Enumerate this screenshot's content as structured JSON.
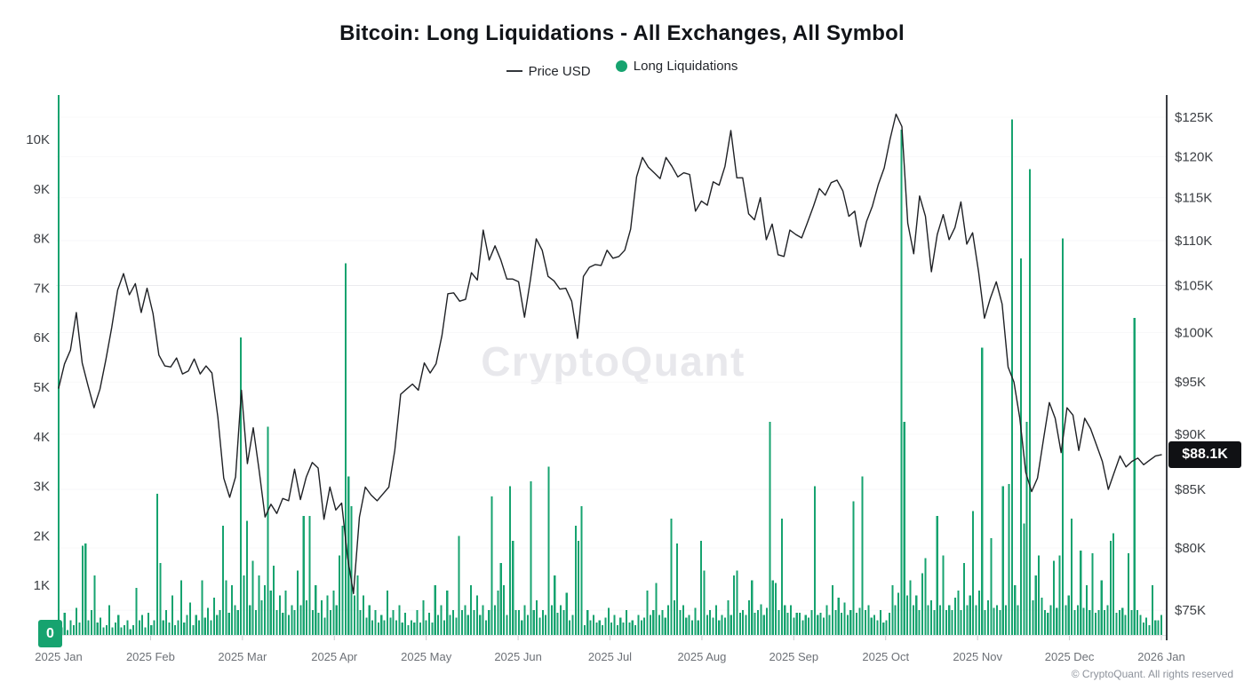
{
  "watermark": "CryptoQuant",
  "copyright": "© CryptoQuant. All rights reserved",
  "chart_data": {
    "type": "combo",
    "title": "Bitcoin: Long Liquidations - All Exchanges, All Symbol",
    "legend_position": "top-center",
    "colors": {
      "bars": "#16a36f",
      "price_line": "#1f2125",
      "price_badge_bg": "#101114",
      "zero_badge_bg": "#16a36f"
    },
    "x_axis": {
      "tick_labels": [
        "2025 Jan",
        "2025 Feb",
        "2025 Mar",
        "2025 Apr",
        "2025 May",
        "2025 Jun",
        "2025 Jul",
        "2025 Aug",
        "2025 Sep",
        "2025 Oct",
        "2025 Nov",
        "2025 Dec",
        "2026 Jan"
      ],
      "start": "2025-01-01",
      "end": "2026-01-05"
    },
    "left_axis": {
      "series": "Long Liquidations",
      "tick_labels": [
        "1K",
        "2K",
        "3K",
        "4K",
        "5K",
        "6K",
        "7K",
        "8K",
        "9K",
        "10K"
      ],
      "tick_values": [
        1,
        2,
        3,
        4,
        5,
        6,
        7,
        8,
        9,
        10
      ],
      "range_k": [
        0,
        10.92
      ],
      "current_badge": "0",
      "current_value": 0
    },
    "right_axis": {
      "series": "Price USD",
      "scale": "log",
      "tick_labels": [
        "$75K",
        "$80K",
        "$85K",
        "$90K",
        "$95K",
        "$100K",
        "$105K",
        "$110K",
        "$115K",
        "$120K",
        "$125K"
      ],
      "tick_values": [
        75,
        80,
        85,
        90,
        95,
        100,
        105,
        110,
        115,
        120,
        125
      ],
      "current_badge": "$88.1K",
      "current_value": 88.1
    },
    "series": [
      {
        "name": "Price USD",
        "type": "line",
        "axis": "right",
        "unit": "thousand USD",
        "points_per_step_days": 2,
        "values": [
          94.4,
          96.8,
          98.2,
          102.1,
          96.9,
          94.6,
          92.5,
          94.3,
          97.2,
          100.5,
          104.5,
          106.3,
          104.0,
          105.2,
          102.1,
          104.7,
          102.0,
          97.7,
          96.6,
          96.5,
          97.4,
          95.8,
          96.1,
          97.3,
          95.8,
          96.6,
          95.9,
          91.6,
          86.0,
          84.3,
          86.1,
          94.2,
          87.3,
          90.6,
          86.7,
          82.6,
          83.7,
          82.9,
          84.2,
          84.0,
          86.8,
          84.1,
          86.1,
          87.4,
          86.9,
          82.4,
          85.2,
          83.2,
          83.8,
          79.2,
          76.3,
          82.6,
          85.2,
          84.5,
          84.0,
          84.6,
          85.2,
          88.5,
          93.8,
          94.3,
          94.8,
          94.2,
          96.9,
          95.9,
          96.8,
          99.7,
          104.1,
          104.2,
          103.3,
          103.5,
          106.4,
          105.6,
          111.2,
          107.8,
          109.4,
          107.8,
          105.7,
          105.7,
          105.4,
          101.6,
          105.6,
          110.2,
          108.9,
          106.0,
          105.5,
          104.6,
          104.7,
          103.3,
          99.4,
          106.0,
          107.0,
          107.3,
          107.2,
          108.9,
          108.0,
          108.2,
          108.9,
          111.3,
          117.5,
          119.9,
          118.7,
          118.0,
          117.3,
          119.9,
          118.8,
          117.5,
          118.0,
          117.8,
          113.4,
          114.6,
          114.1,
          116.9,
          116.5,
          118.8,
          123.3,
          117.4,
          117.4,
          113.1,
          112.4,
          115.0,
          110.1,
          111.9,
          108.4,
          108.2,
          111.2,
          110.7,
          110.3,
          112.1,
          114.0,
          116.1,
          115.3,
          116.8,
          117.1,
          115.8,
          112.8,
          113.4,
          109.3,
          112.2,
          114.0,
          116.6,
          118.6,
          122.2,
          125.4,
          123.8,
          112.0,
          108.5,
          115.2,
          112.8,
          106.5,
          110.7,
          113.0,
          110.1,
          111.5,
          114.5,
          109.6,
          110.9,
          106.5,
          101.5,
          103.6,
          105.4,
          103.0,
          96.5,
          95.0,
          91.5,
          86.5,
          84.8,
          86.0,
          89.5,
          93.0,
          91.5,
          88.3,
          92.5,
          91.8,
          88.5,
          91.5,
          90.5,
          89.0,
          87.5,
          85.0,
          86.5,
          88.0,
          87.0,
          87.5,
          87.8,
          87.2,
          87.6,
          88.0,
          88.1
        ]
      },
      {
        "name": "Long Liquidations",
        "type": "bar",
        "axis": "left",
        "unit": "K",
        "points_per_step_days": 1,
        "values": [
          10.9,
          0.15,
          0.45,
          0.1,
          0.3,
          0.2,
          0.55,
          0.25,
          1.8,
          1.85,
          0.3,
          0.5,
          1.2,
          0.25,
          0.35,
          0.15,
          0.2,
          0.6,
          0.15,
          0.25,
          0.4,
          0.15,
          0.2,
          0.3,
          0.12,
          0.2,
          0.95,
          0.3,
          0.4,
          0.15,
          0.45,
          0.2,
          0.3,
          2.85,
          1.45,
          0.3,
          0.5,
          0.25,
          0.8,
          0.2,
          0.3,
          1.1,
          0.25,
          0.4,
          0.65,
          0.2,
          0.4,
          0.3,
          1.1,
          0.35,
          0.55,
          0.3,
          0.75,
          0.4,
          0.5,
          2.2,
          1.1,
          0.45,
          1.0,
          0.6,
          0.5,
          6.0,
          1.2,
          2.3,
          0.6,
          1.5,
          0.5,
          1.2,
          0.7,
          1.0,
          4.2,
          0.9,
          1.4,
          0.5,
          0.8,
          0.45,
          0.9,
          0.4,
          0.6,
          0.5,
          1.3,
          0.6,
          2.4,
          0.7,
          2.4,
          0.5,
          1.0,
          0.45,
          0.7,
          0.35,
          0.8,
          0.5,
          0.9,
          0.6,
          1.6,
          2.2,
          7.5,
          3.2,
          2.6,
          0.8,
          1.2,
          0.5,
          0.8,
          0.35,
          0.6,
          0.3,
          0.5,
          0.25,
          0.4,
          0.3,
          0.9,
          0.35,
          0.5,
          0.3,
          0.6,
          0.25,
          0.45,
          0.2,
          0.3,
          0.25,
          0.5,
          0.25,
          0.7,
          0.3,
          0.45,
          0.25,
          1.0,
          0.4,
          0.6,
          0.3,
          0.9,
          0.4,
          0.5,
          0.35,
          2.0,
          0.5,
          0.6,
          0.4,
          1.0,
          0.5,
          0.8,
          0.4,
          0.6,
          0.3,
          0.5,
          2.8,
          0.6,
          0.9,
          1.45,
          1.0,
          0.4,
          3.0,
          1.9,
          0.5,
          0.5,
          0.3,
          0.6,
          0.4,
          3.1,
          0.5,
          0.7,
          0.35,
          0.5,
          0.4,
          3.4,
          0.6,
          1.2,
          0.45,
          0.6,
          0.5,
          0.85,
          0.3,
          0.4,
          2.2,
          1.9,
          2.6,
          0.2,
          0.5,
          0.3,
          0.4,
          0.25,
          0.3,
          0.2,
          0.35,
          0.55,
          0.25,
          0.4,
          0.2,
          0.35,
          0.25,
          0.5,
          0.25,
          0.3,
          0.2,
          0.4,
          0.3,
          0.35,
          0.9,
          0.4,
          0.5,
          1.05,
          0.4,
          0.5,
          0.35,
          0.6,
          2.35,
          0.7,
          1.85,
          0.5,
          0.6,
          0.35,
          0.4,
          0.3,
          0.55,
          0.3,
          1.9,
          1.3,
          0.4,
          0.5,
          0.35,
          0.6,
          0.3,
          0.4,
          0.35,
          0.7,
          0.4,
          1.2,
          1.3,
          0.45,
          0.5,
          0.4,
          0.7,
          1.1,
          0.45,
          0.5,
          0.62,
          0.4,
          0.55,
          4.3,
          1.1,
          1.05,
          0.5,
          2.35,
          0.6,
          0.45,
          0.6,
          0.35,
          0.45,
          0.45,
          0.3,
          0.4,
          0.35,
          0.5,
          3.0,
          0.4,
          0.45,
          0.35,
          0.6,
          0.4,
          1.0,
          0.5,
          0.75,
          0.45,
          0.65,
          0.4,
          0.5,
          2.7,
          0.45,
          0.55,
          3.2,
          0.5,
          0.6,
          0.35,
          0.4,
          0.3,
          0.5,
          0.25,
          0.3,
          0.45,
          1.0,
          0.6,
          0.85,
          10.2,
          4.3,
          0.8,
          1.1,
          0.6,
          0.8,
          0.5,
          1.25,
          1.55,
          0.6,
          0.7,
          0.5,
          2.4,
          0.6,
          1.6,
          0.5,
          0.6,
          0.5,
          0.75,
          0.9,
          0.5,
          1.45,
          0.6,
          0.8,
          2.5,
          0.6,
          0.9,
          5.8,
          0.5,
          0.7,
          1.95,
          0.55,
          0.6,
          0.5,
          3.0,
          0.6,
          3.05,
          10.4,
          1.0,
          0.6,
          7.6,
          2.25,
          4.3,
          9.4,
          0.7,
          1.2,
          1.6,
          0.75,
          0.5,
          0.45,
          0.6,
          1.5,
          0.55,
          1.6,
          8.0,
          0.6,
          0.8,
          2.35,
          0.5,
          0.6,
          1.7,
          0.55,
          1.0,
          0.5,
          1.65,
          0.45,
          0.5,
          1.1,
          0.5,
          0.6,
          1.9,
          2.05,
          0.45,
          0.5,
          0.55,
          0.4,
          1.65,
          0.5,
          6.4,
          0.5,
          0.4,
          0.25,
          0.35,
          0.2,
          1.0,
          0.3,
          0.3,
          0.4
        ]
      }
    ]
  }
}
